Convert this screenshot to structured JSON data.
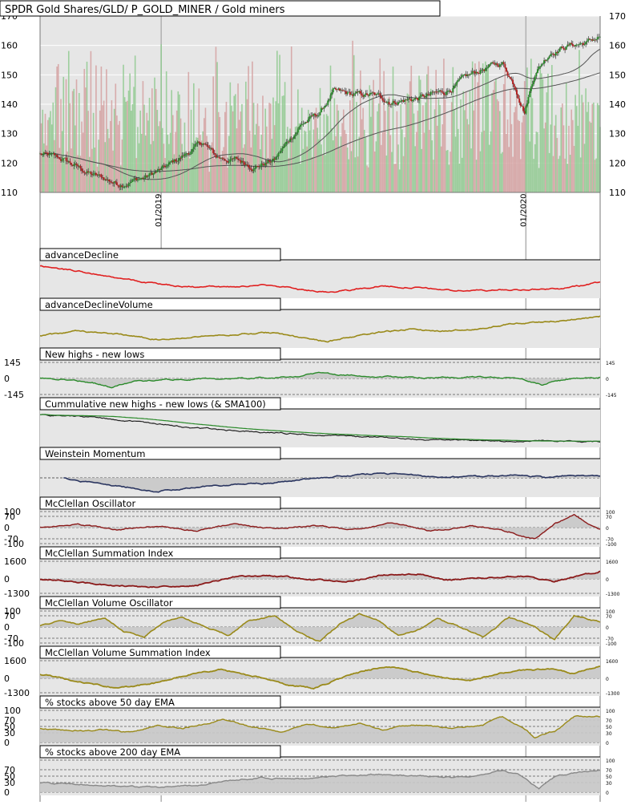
{
  "title": "SPDR Gold Shares/GLD/ P_GOLD_MINER / Gold miners",
  "colors": {
    "background": "#e6e6e6",
    "up_candle": "#2a8a2a",
    "down_candle": "#b22222",
    "volume_up": "#8fc98f",
    "volume_down": "#d3a0a0",
    "advance_decline": "#e02020",
    "olive": "#9a8a1a",
    "green_line": "#2a8a2a",
    "navy": "#2a3560",
    "dark_red": "#8b1a1a",
    "gray_line": "#888888",
    "fill": "#c8c8c8"
  },
  "chart_data": [
    {
      "id": "price",
      "type": "candlestick",
      "title": "SPDR Gold Shares/GLD/ P_GOLD_MINER / Gold miners",
      "yticks": [
        "110",
        "120",
        "130",
        "140",
        "150",
        "160",
        "170"
      ],
      "ylim": [
        110,
        170
      ],
      "x_labels": [
        "01/2019",
        "01/2020"
      ],
      "grid": true,
      "overlays": [
        "moving average (short)",
        "moving average (long)"
      ],
      "volume_bars": true,
      "anchors": [
        [
          0,
          123
        ],
        [
          18,
          121
        ],
        [
          40,
          116
        ],
        [
          60,
          113
        ],
        [
          80,
          115
        ],
        [
          95,
          118
        ],
        [
          112,
          123
        ],
        [
          125,
          127
        ],
        [
          135,
          122
        ],
        [
          150,
          121
        ],
        [
          165,
          119
        ],
        [
          180,
          121
        ],
        [
          190,
          127
        ],
        [
          200,
          133
        ],
        [
          215,
          137
        ],
        [
          225,
          144
        ],
        [
          240,
          143
        ],
        [
          255,
          143
        ],
        [
          270,
          141
        ],
        [
          290,
          142
        ],
        [
          310,
          144
        ],
        [
          328,
          149
        ],
        [
          340,
          152
        ],
        [
          355,
          154
        ],
        [
          365,
          146
        ],
        [
          372,
          138
        ],
        [
          380,
          151
        ],
        [
          392,
          158
        ],
        [
          405,
          160
        ],
        [
          420,
          161
        ],
        [
          430,
          163
        ]
      ]
    },
    {
      "id": "advance_decline",
      "type": "line",
      "title": "advanceDecline",
      "anchors": [
        [
          0,
          100
        ],
        [
          30,
          85
        ],
        [
          60,
          65
        ],
        [
          90,
          48
        ],
        [
          120,
          38
        ],
        [
          150,
          40
        ],
        [
          175,
          45
        ],
        [
          200,
          30
        ],
        [
          220,
          25
        ],
        [
          240,
          30
        ],
        [
          260,
          42
        ],
        [
          285,
          38
        ],
        [
          300,
          34
        ],
        [
          320,
          28
        ],
        [
          350,
          30
        ],
        [
          380,
          32
        ],
        [
          400,
          35
        ],
        [
          420,
          45
        ],
        [
          430,
          55
        ]
      ]
    },
    {
      "id": "advance_decline_volume",
      "type": "line",
      "title": "advanceDeclineVolume",
      "anchors": [
        [
          0,
          30
        ],
        [
          30,
          45
        ],
        [
          60,
          35
        ],
        [
          90,
          20
        ],
        [
          120,
          30
        ],
        [
          150,
          35
        ],
        [
          180,
          40
        ],
        [
          200,
          25
        ],
        [
          220,
          15
        ],
        [
          240,
          28
        ],
        [
          260,
          42
        ],
        [
          285,
          50
        ],
        [
          310,
          45
        ],
        [
          340,
          52
        ],
        [
          360,
          65
        ],
        [
          390,
          72
        ],
        [
          420,
          82
        ],
        [
          430,
          88
        ]
      ]
    },
    {
      "id": "new_highs_new_lows",
      "type": "area-line",
      "title": "New highs - new lows",
      "ylabels": [
        "145",
        "0",
        "-145"
      ],
      "right_ticks": [
        "145",
        "0",
        "-145"
      ],
      "anchors": [
        [
          0,
          0
        ],
        [
          20,
          -10
        ],
        [
          40,
          -35
        ],
        [
          55,
          -80
        ],
        [
          70,
          -30
        ],
        [
          90,
          -15
        ],
        [
          110,
          -8
        ],
        [
          140,
          0
        ],
        [
          165,
          5
        ],
        [
          185,
          15
        ],
        [
          200,
          25
        ],
        [
          215,
          45
        ],
        [
          230,
          35
        ],
        [
          250,
          20
        ],
        [
          275,
          15
        ],
        [
          300,
          5
        ],
        [
          330,
          10
        ],
        [
          360,
          12
        ],
        [
          375,
          -20
        ],
        [
          385,
          -55
        ],
        [
          395,
          -30
        ],
        [
          410,
          0
        ],
        [
          430,
          10
        ]
      ]
    },
    {
      "id": "cumulative_new_highs_lows",
      "type": "line",
      "title": "Cummulative new highs - new lows (& SMA100)",
      "anchors": [
        [
          0,
          95
        ],
        [
          40,
          88
        ],
        [
          80,
          70
        ],
        [
          120,
          50
        ],
        [
          160,
          40
        ],
        [
          200,
          30
        ],
        [
          240,
          22
        ],
        [
          280,
          15
        ],
        [
          320,
          10
        ],
        [
          360,
          8
        ],
        [
          400,
          6
        ],
        [
          430,
          6
        ]
      ]
    },
    {
      "id": "weinstein_momentum",
      "type": "area-line",
      "title": "Weinstein Momentum",
      "anchors": [
        [
          0,
          0
        ],
        [
          18,
          0
        ],
        [
          30,
          -10
        ],
        [
          60,
          -25
        ],
        [
          90,
          -42
        ],
        [
          120,
          -30
        ],
        [
          150,
          -20
        ],
        [
          180,
          -15
        ],
        [
          200,
          -5
        ],
        [
          230,
          5
        ],
        [
          260,
          15
        ],
        [
          285,
          10
        ],
        [
          310,
          2
        ],
        [
          340,
          5
        ],
        [
          370,
          10
        ],
        [
          390,
          0
        ],
        [
          410,
          8
        ],
        [
          430,
          5
        ]
      ]
    },
    {
      "id": "mcclellan_oscillator",
      "type": "area-line",
      "title": "McClellan Oscillator",
      "ylabels": [
        "100",
        "70",
        "0",
        "-70",
        "-100"
      ],
      "right_ticks": [
        "100",
        "70",
        "0",
        "-70",
        "-100"
      ],
      "anchors": [
        [
          0,
          0
        ],
        [
          30,
          20
        ],
        [
          60,
          -15
        ],
        [
          90,
          10
        ],
        [
          120,
          -20
        ],
        [
          150,
          25
        ],
        [
          180,
          -10
        ],
        [
          210,
          15
        ],
        [
          240,
          -15
        ],
        [
          270,
          30
        ],
        [
          300,
          -20
        ],
        [
          330,
          10
        ],
        [
          360,
          -25
        ],
        [
          380,
          -75
        ],
        [
          395,
          20
        ],
        [
          410,
          80
        ],
        [
          420,
          30
        ],
        [
          430,
          -10
        ]
      ]
    },
    {
      "id": "mcclellan_summation",
      "type": "area-line",
      "title": "McClellan Summation Index",
      "ylabels": [
        "1600",
        "0",
        "-1300"
      ],
      "right_ticks": [
        "1600",
        "0",
        "-1300"
      ],
      "anchors": [
        [
          0,
          0
        ],
        [
          40,
          -400
        ],
        [
          80,
          -800
        ],
        [
          120,
          -600
        ],
        [
          150,
          200
        ],
        [
          180,
          300
        ],
        [
          210,
          -100
        ],
        [
          240,
          -200
        ],
        [
          260,
          300
        ],
        [
          290,
          500
        ],
        [
          310,
          -100
        ],
        [
          340,
          100
        ],
        [
          370,
          300
        ],
        [
          395,
          -300
        ],
        [
          410,
          200
        ],
        [
          430,
          700
        ]
      ]
    },
    {
      "id": "mcclellan_volume_oscillator",
      "type": "area-line",
      "title": "McClellan Volume Oscillator",
      "ylabels": [
        "100",
        "70",
        "0",
        "-70",
        "-100"
      ],
      "right_ticks": [
        "100",
        "70",
        "0",
        "-70",
        "-100"
      ],
      "anchors": [
        [
          0,
          10
        ],
        [
          15,
          40
        ],
        [
          30,
          20
        ],
        [
          50,
          60
        ],
        [
          65,
          -30
        ],
        [
          80,
          -60
        ],
        [
          95,
          30
        ],
        [
          110,
          60
        ],
        [
          130,
          -10
        ],
        [
          145,
          -50
        ],
        [
          160,
          40
        ],
        [
          180,
          70
        ],
        [
          200,
          -40
        ],
        [
          215,
          -90
        ],
        [
          230,
          20
        ],
        [
          245,
          80
        ],
        [
          260,
          40
        ],
        [
          275,
          -50
        ],
        [
          290,
          -20
        ],
        [
          305,
          50
        ],
        [
          320,
          10
        ],
        [
          340,
          -60
        ],
        [
          360,
          60
        ],
        [
          380,
          0
        ],
        [
          395,
          -80
        ],
        [
          410,
          70
        ],
        [
          430,
          30
        ]
      ]
    },
    {
      "id": "mcclellan_volume_summation",
      "type": "area-line",
      "title": "McClellan Volume Summation Index",
      "ylabels": [
        "1600",
        "0",
        "-1300"
      ],
      "right_ticks": [
        "1600",
        "0",
        "-1300"
      ],
      "anchors": [
        [
          0,
          400
        ],
        [
          30,
          -300
        ],
        [
          60,
          -900
        ],
        [
          90,
          -400
        ],
        [
          120,
          500
        ],
        [
          140,
          800
        ],
        [
          165,
          200
        ],
        [
          190,
          -600
        ],
        [
          210,
          -900
        ],
        [
          235,
          200
        ],
        [
          260,
          1000
        ],
        [
          280,
          900
        ],
        [
          300,
          200
        ],
        [
          330,
          -200
        ],
        [
          360,
          600
        ],
        [
          390,
          900
        ],
        [
          410,
          400
        ],
        [
          430,
          1100
        ]
      ]
    },
    {
      "id": "pct_above_50ema",
      "type": "area-line",
      "title": "% stocks above 50 day EMA",
      "ylabels": [
        "100",
        "70",
        "50",
        "30",
        "0"
      ],
      "right_ticks": [
        "100",
        "70",
        "50",
        "30",
        "0"
      ],
      "anchors": [
        [
          0,
          45
        ],
        [
          25,
          35
        ],
        [
          50,
          40
        ],
        [
          70,
          30
        ],
        [
          90,
          55
        ],
        [
          110,
          45
        ],
        [
          140,
          70
        ],
        [
          160,
          50
        ],
        [
          185,
          35
        ],
        [
          205,
          60
        ],
        [
          225,
          45
        ],
        [
          245,
          60
        ],
        [
          265,
          40
        ],
        [
          285,
          55
        ],
        [
          305,
          50
        ],
        [
          320,
          45
        ],
        [
          340,
          55
        ],
        [
          355,
          80
        ],
        [
          370,
          50
        ],
        [
          380,
          15
        ],
        [
          395,
          35
        ],
        [
          410,
          80
        ],
        [
          430,
          80
        ]
      ]
    },
    {
      "id": "pct_above_200ema",
      "type": "area-line",
      "title": "% stocks above 200 day EMA",
      "ylabels": [
        "70",
        "50",
        "30",
        "0"
      ],
      "right_ticks": [
        "100",
        "70",
        "50",
        "30",
        "0"
      ],
      "anchors": [
        [
          0,
          30
        ],
        [
          30,
          25
        ],
        [
          60,
          18
        ],
        [
          90,
          15
        ],
        [
          120,
          20
        ],
        [
          145,
          35
        ],
        [
          170,
          45
        ],
        [
          200,
          40
        ],
        [
          230,
          50
        ],
        [
          260,
          55
        ],
        [
          290,
          50
        ],
        [
          315,
          45
        ],
        [
          340,
          55
        ],
        [
          355,
          70
        ],
        [
          370,
          50
        ],
        [
          383,
          10
        ],
        [
          395,
          45
        ],
        [
          410,
          60
        ],
        [
          430,
          70
        ]
      ]
    }
  ]
}
